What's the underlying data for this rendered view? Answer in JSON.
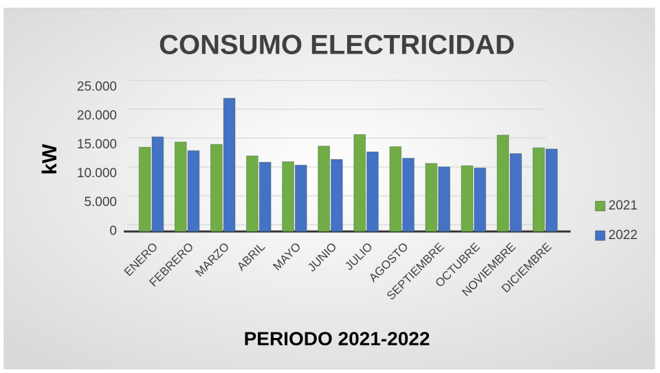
{
  "chart_data": {
    "type": "bar",
    "title": "CONSUMO ELECTRICIDAD",
    "x_label": "PERIODO 2021-2022",
    "y_label": "kW",
    "categories": [
      "ENERO",
      "FEBRERO",
      "MARZO",
      "ABRIL",
      "MAYO",
      "JUNIO",
      "JULIO",
      "AGOSTO",
      "SEPTIEMBRE",
      "OCTUBRE",
      "NOVIEMBRE",
      "DICIEMBRE"
    ],
    "series": [
      {
        "name": "2021",
        "color": "#70ad47",
        "values": [
          14600,
          15500,
          15100,
          13100,
          12100,
          14800,
          16800,
          14700,
          11800,
          11400,
          16700,
          14500
        ]
      },
      {
        "name": "2022",
        "color": "#4472c4",
        "values": [
          16400,
          14000,
          23100,
          12000,
          11500,
          12500,
          13800,
          12700,
          11200,
          11000,
          13500,
          14300
        ]
      }
    ],
    "ylim": [
      0,
      25000
    ],
    "yticks": [
      0,
      {
        "value": 5000,
        "label": "5.000"
      },
      {
        "value": 10000,
        "label": "10.000"
      },
      {
        "value": 15000,
        "label": "15.000"
      },
      {
        "value": 20000,
        "label": "20.000"
      },
      {
        "value": 25000,
        "label": "25.000"
      }
    ],
    "grid": true,
    "legend": "right"
  }
}
